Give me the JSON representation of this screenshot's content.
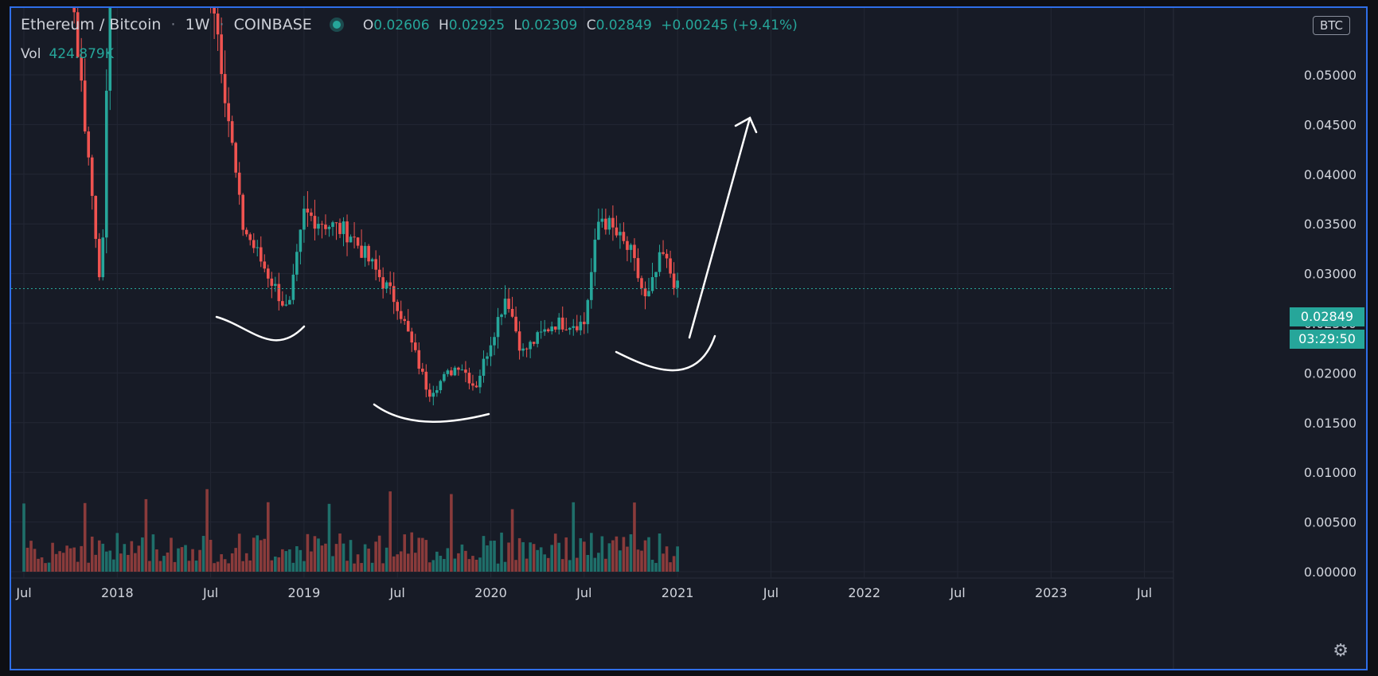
{
  "header": {
    "symbol": "Ethereum / Bitcoin",
    "interval": "1W",
    "exchange": "COINBASE",
    "open_label": "O",
    "open": "0.02606",
    "high_label": "H",
    "high": "0.02925",
    "low_label": "L",
    "low": "0.02309",
    "close_label": "C",
    "close": "0.02849",
    "change": "+0.00245 (+9.41%)"
  },
  "volume": {
    "label": "Vol",
    "value": "424.879K"
  },
  "currency_badge": "BTC",
  "last_price_tag": "0.02849",
  "countdown_tag": "03:29:50",
  "colors": {
    "up": "#26a69a",
    "down": "#ef5350",
    "background": "#171b26",
    "grid": "#232734",
    "annotation": "#ffffff",
    "frame": "#2f6ee8"
  },
  "chart_data": {
    "type": "candlestick",
    "y_axis": {
      "range": [
        0.0,
        0.056
      ],
      "ticks": [
        "0.00000",
        "0.00500",
        "0.01000",
        "0.01500",
        "0.02000",
        "0.02500",
        "0.03000",
        "0.03500",
        "0.04000",
        "0.04500",
        "0.05000"
      ]
    },
    "x_axis": {
      "ticks": [
        "Jul",
        "2018",
        "Jul",
        "2019",
        "Jul",
        "2020",
        "Jul",
        "2021",
        "Jul",
        "2022",
        "Jul",
        "2023",
        "Jul"
      ]
    },
    "last_close": 0.02849,
    "grid": true,
    "key_points": [
      {
        "date": "2017-07",
        "close": 0.09
      },
      {
        "date": "2017-10",
        "close": 0.06
      },
      {
        "date": "2017-12",
        "close": 0.028
      },
      {
        "date": "2018-01",
        "close": 0.09
      },
      {
        "date": "2018-07",
        "close": 0.06
      },
      {
        "date": "2018-09",
        "close": 0.035
      },
      {
        "date": "2018-12",
        "close": 0.026
      },
      {
        "date": "2019-01",
        "close": 0.036
      },
      {
        "date": "2019-04",
        "close": 0.034
      },
      {
        "date": "2019-07",
        "close": 0.027
      },
      {
        "date": "2019-09",
        "close": 0.018
      },
      {
        "date": "2019-11",
        "close": 0.021
      },
      {
        "date": "2019-12",
        "close": 0.0185
      },
      {
        "date": "2020-02",
        "close": 0.028
      },
      {
        "date": "2020-03",
        "close": 0.022
      },
      {
        "date": "2020-05",
        "close": 0.025
      },
      {
        "date": "2020-07",
        "close": 0.025
      },
      {
        "date": "2020-08",
        "close": 0.036
      },
      {
        "date": "2020-10",
        "close": 0.032
      },
      {
        "date": "2020-11",
        "close": 0.027
      },
      {
        "date": "2020-12",
        "close": 0.032
      },
      {
        "date": "2021-01",
        "close": 0.02849
      }
    ],
    "annotations": [
      {
        "type": "curve",
        "description": "hand-drawn arc under 2018 low"
      },
      {
        "type": "curve",
        "description": "hand-drawn arc under 2019 bottom"
      },
      {
        "type": "curve",
        "description": "hand-drawn arc under late 2020 low"
      },
      {
        "type": "arrow",
        "description": "hand-drawn arrow pointing up"
      }
    ]
  }
}
